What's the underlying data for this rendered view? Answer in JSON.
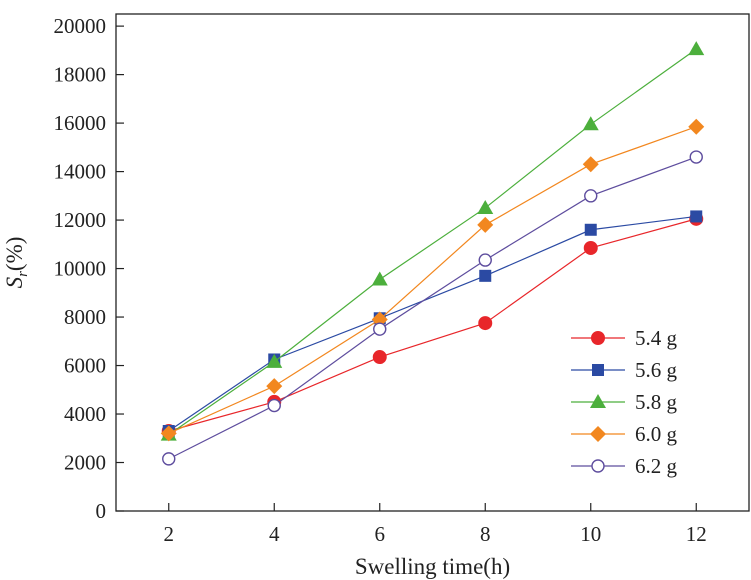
{
  "chart_data": {
    "type": "line",
    "title": "",
    "xlabel": "Swelling time(h)",
    "ylabel_main": "S",
    "ylabel_sub": "r",
    "ylabel_unit": "(%)",
    "x": [
      2,
      4,
      6,
      8,
      10,
      12
    ],
    "xticks": [
      "2",
      "4",
      "6",
      "8",
      "10",
      "12"
    ],
    "yticks": [
      "0",
      "2000",
      "4000",
      "6000",
      "8000",
      "10000",
      "12000",
      "14000",
      "16000",
      "18000",
      "20000"
    ],
    "xlim": [
      1,
      13
    ],
    "ylim": [
      0,
      20500
    ],
    "grid": false,
    "legend_position": "bottom-right",
    "series": [
      {
        "name": "5.4 g",
        "values": [
          3300,
          4500,
          6350,
          7750,
          10850,
          12050
        ],
        "color": "#e8262a",
        "marker": "circle-filled"
      },
      {
        "name": "5.6 g",
        "values": [
          3300,
          6250,
          7950,
          9700,
          11600,
          12150
        ],
        "color": "#2b4aa3",
        "marker": "square-filled"
      },
      {
        "name": "5.8 g",
        "values": [
          3150,
          6150,
          9550,
          12500,
          15950,
          19050
        ],
        "color": "#4caf3c",
        "marker": "triangle-filled"
      },
      {
        "name": "6.0 g",
        "values": [
          3200,
          5150,
          7900,
          11800,
          14300,
          15850
        ],
        "color": "#f2871f",
        "marker": "diamond-filled"
      },
      {
        "name": "6.2 g",
        "values": [
          2150,
          4350,
          7500,
          10350,
          13000,
          14600
        ],
        "color": "#5e4d9e",
        "marker": "circle-open"
      }
    ]
  }
}
